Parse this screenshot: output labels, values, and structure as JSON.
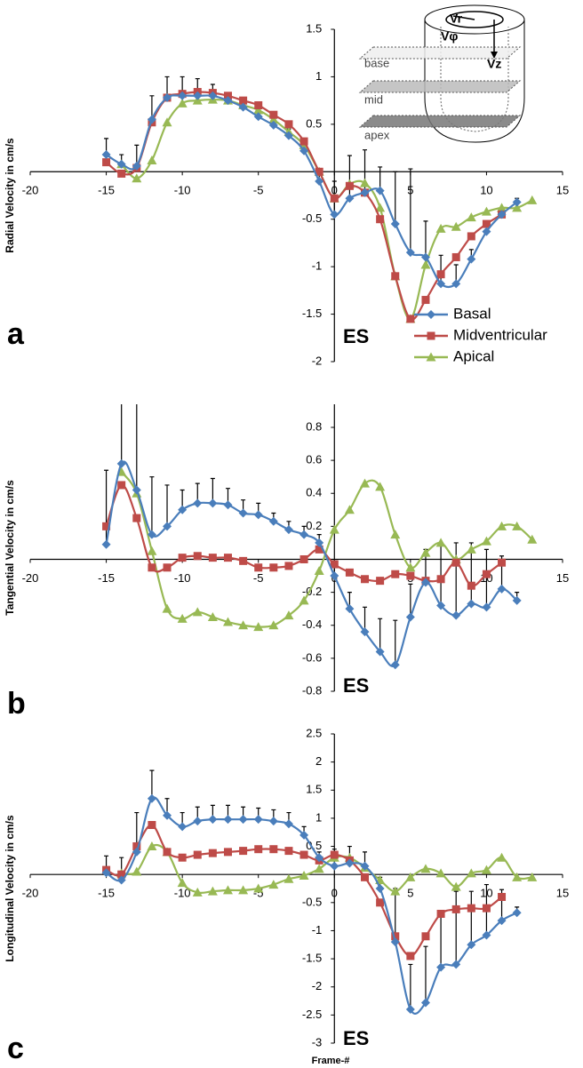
{
  "chart_data": [
    {
      "type": "line",
      "ylabel": "Radial Velocity in cm/s",
      "panel_label": "a",
      "annotation": "ES",
      "diagram_labels": [
        "Vr",
        "Vφ",
        "Vz",
        "base",
        "mid",
        "apex"
      ],
      "legend": "right",
      "xlim": [
        -20,
        15
      ],
      "xticks": [
        -20,
        -15,
        -10,
        -5,
        0,
        5,
        10,
        15
      ],
      "ylim": [
        -2,
        1.5
      ],
      "yticks": [
        -2,
        -1.5,
        -1,
        -0.5,
        0.5,
        1,
        1.5
      ],
      "x": [
        -15,
        -14,
        -13,
        -12,
        -11,
        -10,
        -9,
        -8,
        -7,
        -6,
        -5,
        -4,
        -3,
        -2,
        -1,
        0,
        1,
        2,
        3,
        4,
        5,
        6,
        7,
        8,
        9,
        10,
        11,
        12,
        13
      ],
      "series": [
        {
          "name": "Basal",
          "color": "#4a7ebb",
          "marker": "diamond",
          "values": [
            0.18,
            0.08,
            0.06,
            0.55,
            0.78,
            0.8,
            0.8,
            0.8,
            0.75,
            0.68,
            0.58,
            0.49,
            0.38,
            0.22,
            -0.1,
            -0.45,
            -0.28,
            -0.22,
            -0.2,
            -0.55,
            -0.85,
            -0.9,
            -1.18,
            -1.18,
            -0.92,
            -0.63,
            -0.45,
            -0.32,
            null
          ],
          "errors": [
            0.17,
            0.1,
            0.22,
            0.25,
            0.22,
            0.2,
            0.18,
            0.12,
            0.08,
            0.08,
            0.08,
            0.08,
            0.07,
            0.08,
            0.1,
            0.35,
            0.45,
            0.45,
            0.25,
            0.55,
            0.88,
            0.38,
            0.3,
            0.2,
            0.1,
            0.08,
            0.06,
            0.04,
            null
          ]
        },
        {
          "name": "Midventricular",
          "color": "#be4b48",
          "marker": "square",
          "values": [
            0.1,
            -0.02,
            0.04,
            0.52,
            0.78,
            0.82,
            0.84,
            0.83,
            0.8,
            0.75,
            0.7,
            0.6,
            0.5,
            0.32,
            0.0,
            -0.28,
            -0.15,
            -0.22,
            -0.5,
            -1.1,
            -1.55,
            -1.35,
            -1.08,
            -0.9,
            -0.68,
            -0.55,
            -0.45,
            null,
            null
          ]
        },
        {
          "name": "Apical",
          "color": "#98b954",
          "marker": "triangle",
          "values": [
            null,
            0.08,
            -0.07,
            0.12,
            0.52,
            0.72,
            0.75,
            0.76,
            0.75,
            0.7,
            0.65,
            0.55,
            0.42,
            0.28,
            0.0,
            -0.28,
            -0.13,
            -0.12,
            -0.38,
            -1.1,
            -1.55,
            -0.98,
            -0.6,
            -0.58,
            -0.48,
            -0.42,
            -0.38,
            -0.38,
            -0.3
          ]
        }
      ]
    },
    {
      "type": "line",
      "ylabel": "Tangential Velocity in cm/s",
      "panel_label": "b",
      "annotation": "ES",
      "xlim": [
        -20,
        15
      ],
      "xticks": [
        -20,
        -15,
        -10,
        -5,
        0,
        5,
        10,
        15
      ],
      "ylim": [
        -0.8,
        0.94
      ],
      "yticks": [
        -0.8,
        -0.6,
        -0.4,
        -0.2,
        0.2,
        0.4,
        0.6,
        0.8
      ],
      "x": [
        -15,
        -14,
        -13,
        -12,
        -11,
        -10,
        -9,
        -8,
        -7,
        -6,
        -5,
        -4,
        -3,
        -2,
        -1,
        0,
        1,
        2,
        3,
        4,
        5,
        6,
        7,
        8,
        9,
        10,
        11,
        12,
        13
      ],
      "series": [
        {
          "color": "#4a7ebb",
          "marker": "diamond",
          "values": [
            0.09,
            0.58,
            0.42,
            0.15,
            0.2,
            0.3,
            0.34,
            0.34,
            0.33,
            0.28,
            0.27,
            0.23,
            0.18,
            0.15,
            0.1,
            -0.1,
            -0.3,
            -0.44,
            -0.56,
            -0.64,
            -0.35,
            -0.14,
            -0.28,
            -0.34,
            -0.27,
            -0.29,
            -0.18,
            -0.25,
            null
          ],
          "errors": [
            0.45,
            0.5,
            0.6,
            0.35,
            0.25,
            0.12,
            0.12,
            0.15,
            0.1,
            0.08,
            0.07,
            0.05,
            0.05,
            0.05,
            0.05,
            0.05,
            0.1,
            0.15,
            0.2,
            0.27,
            0.2,
            0.2,
            0.38,
            0.44,
            0.37,
            0.35,
            0.2,
            0.05,
            null
          ]
        },
        {
          "color": "#be4b48",
          "marker": "square",
          "values": [
            0.2,
            0.45,
            0.25,
            -0.05,
            -0.05,
            0.01,
            0.02,
            0.01,
            0.01,
            -0.01,
            -0.05,
            -0.05,
            -0.04,
            0.0,
            0.06,
            -0.03,
            -0.08,
            -0.12,
            -0.13,
            -0.09,
            -0.1,
            -0.13,
            -0.12,
            -0.02,
            -0.16,
            -0.09,
            -0.02,
            null,
            null
          ]
        },
        {
          "color": "#98b954",
          "marker": "triangle",
          "values": [
            null,
            0.53,
            0.4,
            0.05,
            -0.3,
            -0.36,
            -0.32,
            -0.35,
            -0.38,
            -0.4,
            -0.41,
            -0.4,
            -0.34,
            -0.25,
            -0.07,
            0.18,
            0.3,
            0.46,
            0.44,
            0.15,
            -0.05,
            0.04,
            0.1,
            0.0,
            0.06,
            0.11,
            0.2,
            0.2,
            0.12
          ]
        }
      ]
    },
    {
      "type": "line",
      "ylabel": "Longitudinal Velocity  in cm/s",
      "panel_label": "c",
      "annotation": "ES",
      "xlabel": "Frame-#",
      "xlim": [
        -20,
        15
      ],
      "xticks": [
        -20,
        -15,
        -10,
        -5,
        0,
        5,
        10,
        15
      ],
      "ylim": [
        -3,
        2.5
      ],
      "yticks": [
        -3,
        -2.5,
        -2,
        -1.5,
        -1,
        -0.5,
        0.5,
        1,
        1.5,
        2,
        2.5
      ],
      "x": [
        -15,
        -14,
        -13,
        -12,
        -11,
        -10,
        -9,
        -8,
        -7,
        -6,
        -5,
        -4,
        -3,
        -2,
        -1,
        0,
        1,
        2,
        3,
        4,
        5,
        6,
        7,
        8,
        9,
        10,
        11,
        12,
        13
      ],
      "series": [
        {
          "color": "#4a7ebb",
          "marker": "diamond",
          "values": [
            0.03,
            -0.1,
            0.4,
            1.35,
            1.05,
            0.85,
            0.95,
            0.98,
            0.98,
            0.98,
            0.98,
            0.95,
            0.9,
            0.7,
            0.3,
            0.15,
            0.2,
            0.15,
            -0.25,
            -1.2,
            -2.4,
            -2.28,
            -1.65,
            -1.6,
            -1.25,
            -1.08,
            -0.82,
            -0.68,
            null
          ],
          "errors": [
            0.3,
            0.4,
            0.7,
            0.5,
            0.3,
            0.25,
            0.25,
            0.25,
            0.25,
            0.22,
            0.2,
            0.2,
            0.2,
            0.15,
            0.1,
            0.3,
            0.3,
            0.25,
            0.2,
            0.95,
            0.8,
            1.0,
            0.95,
            1.3,
            0.95,
            0.9,
            0.55,
            0.1,
            null
          ]
        },
        {
          "color": "#be4b48",
          "marker": "square",
          "values": [
            0.08,
            0.0,
            0.5,
            0.88,
            0.4,
            0.3,
            0.35,
            0.38,
            0.4,
            0.42,
            0.45,
            0.45,
            0.42,
            0.35,
            0.25,
            0.35,
            0.25,
            -0.05,
            -0.5,
            -1.1,
            -1.45,
            -1.1,
            -0.7,
            -0.62,
            -0.6,
            -0.6,
            -0.4,
            null,
            null
          ]
        },
        {
          "color": "#98b954",
          "marker": "triangle",
          "values": [
            null,
            0.02,
            0.05,
            0.5,
            0.4,
            -0.15,
            -0.32,
            -0.3,
            -0.28,
            -0.28,
            -0.25,
            -0.18,
            -0.08,
            -0.02,
            0.1,
            0.3,
            0.3,
            0.12,
            -0.1,
            -0.3,
            -0.05,
            0.1,
            0.02,
            -0.22,
            0.02,
            0.08,
            0.3,
            -0.05,
            -0.05
          ]
        }
      ]
    }
  ]
}
